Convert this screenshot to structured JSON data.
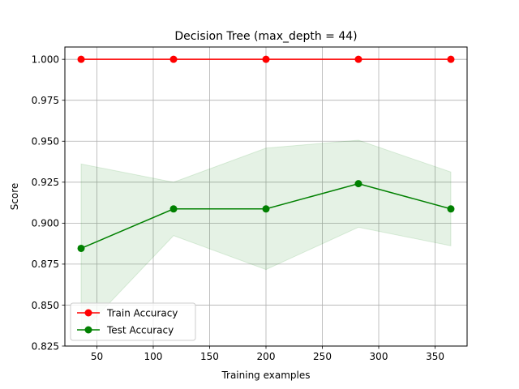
{
  "chart_data": {
    "type": "line",
    "title": "Decision Tree (max_depth = 44)",
    "xlabel": "Training examples",
    "ylabel": "Score",
    "xlim": [
      21.6,
      378.4
    ],
    "ylim": [
      0.825,
      1.0075
    ],
    "xticks": [
      50,
      100,
      150,
      200,
      250,
      300,
      350
    ],
    "xtick_labels": [
      "50",
      "100",
      "150",
      "200",
      "250",
      "300",
      "350"
    ],
    "yticks": [
      0.825,
      0.85,
      0.875,
      0.9,
      0.925,
      0.95,
      0.975,
      1.0
    ],
    "ytick_labels": [
      "0.825",
      "0.850",
      "0.875",
      "0.900",
      "0.925",
      "0.950",
      "0.975",
      "1.000"
    ],
    "grid": true,
    "legend_position": "lower-left",
    "x": [
      36,
      118,
      200,
      282,
      364
    ],
    "series": [
      {
        "name": "Train Accuracy",
        "color": "#ff0000",
        "values": [
          1.0,
          1.0,
          1.0,
          1.0,
          1.0
        ],
        "band_lower": [
          1.0,
          1.0,
          1.0,
          1.0,
          1.0
        ],
        "band_upper": [
          1.0,
          1.0,
          1.0,
          1.0,
          1.0
        ]
      },
      {
        "name": "Test Accuracy",
        "color": "#008000",
        "values": [
          0.8846,
          0.9087,
          0.9087,
          0.9241,
          0.9087
        ],
        "band_lower": [
          0.8331,
          0.8924,
          0.8717,
          0.8975,
          0.8862
        ],
        "band_upper": [
          0.9361,
          0.925,
          0.9458,
          0.9506,
          0.9312
        ]
      }
    ]
  }
}
